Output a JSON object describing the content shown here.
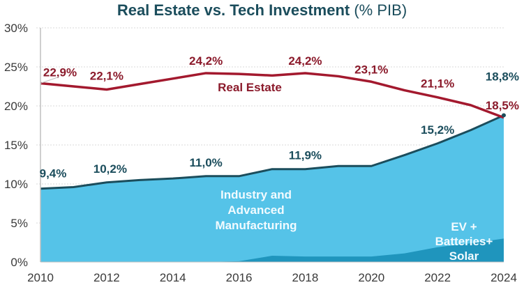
{
  "chart_data": {
    "type": "area",
    "title": "Real Estate vs. Tech Investment",
    "title_unit": "(% PIB)",
    "xlabel": "",
    "ylabel": "",
    "x": [
      2010,
      2011,
      2012,
      2013,
      2014,
      2015,
      2016,
      2017,
      2018,
      2019,
      2020,
      2021,
      2022,
      2023,
      2024
    ],
    "xticks": [
      "2010",
      "2012",
      "2014",
      "2016",
      "2018",
      "2020",
      "2022",
      "2024"
    ],
    "yticks": [
      "0%",
      "5%",
      "10%",
      "15%",
      "20%",
      "25%",
      "30%"
    ],
    "ylim": [
      0,
      30
    ],
    "grid": true,
    "series": [
      {
        "name": "Real Estate",
        "kind": "line",
        "color": "#a3192e",
        "values": [
          22.9,
          22.5,
          22.1,
          22.8,
          23.5,
          24.2,
          24.1,
          23.9,
          24.2,
          23.8,
          23.1,
          22.0,
          21.1,
          20.1,
          18.5
        ]
      },
      {
        "name": "Industry and Advanced Manufacturing",
        "kind": "area",
        "color": "#55c3e8",
        "line_color": "#1b4d5c",
        "values": [
          9.4,
          9.6,
          10.2,
          10.5,
          10.7,
          11.0,
          11.0,
          11.9,
          11.9,
          12.3,
          12.3,
          13.7,
          15.2,
          16.9,
          18.8
        ]
      },
      {
        "name": "EV + Batteries+ Solar",
        "kind": "area",
        "color": "#1f95bd",
        "values": [
          0,
          0,
          0,
          0,
          0,
          0,
          0.1,
          0.8,
          0.7,
          0.7,
          0.7,
          1.1,
          1.9,
          2.4,
          3.0
        ]
      }
    ],
    "annotations": {
      "real_estate": [
        {
          "year": 2010,
          "text": "22,9%"
        },
        {
          "year": 2012,
          "text": "22,1%"
        },
        {
          "year": 2015,
          "text": "24,2%"
        },
        {
          "year": 2018,
          "text": "24,2%"
        },
        {
          "year": 2020,
          "text": "23,1%"
        },
        {
          "year": 2022,
          "text": "21,1%"
        },
        {
          "year": 2024,
          "text": "18,5%"
        }
      ],
      "tech": [
        {
          "year": 2010,
          "text": "9,4%"
        },
        {
          "year": 2012,
          "text": "10,2%"
        },
        {
          "year": 2015,
          "text": "11,0%"
        },
        {
          "year": 2018,
          "text": "11,9%"
        },
        {
          "year": 2022,
          "text": "15,2%"
        },
        {
          "year": 2024,
          "text": "18,8%"
        }
      ]
    },
    "series_labels": {
      "real_estate": "Real Estate",
      "industry": [
        "Industry and",
        "Advanced",
        "Manufacturing"
      ],
      "ev": [
        "EV +",
        "Batteries+",
        "Solar"
      ]
    }
  }
}
